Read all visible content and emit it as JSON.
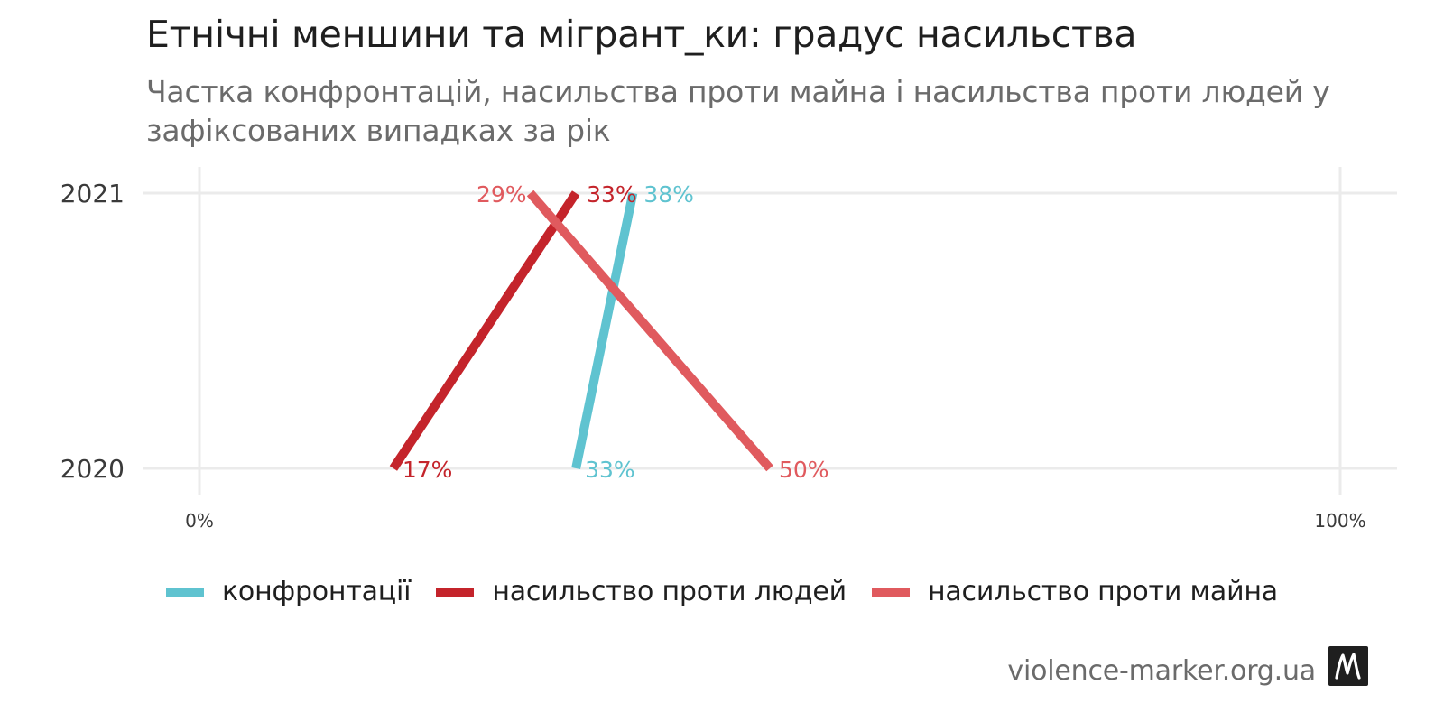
{
  "chart_data": {
    "type": "line",
    "title": "Етнічні меншини та мігрант_ки: градус насильства",
    "subtitle": "Частка конфронтацій, насильства проти майна і насильства проти людей у зафіксованих випадках за рік",
    "orientation": "horizontal",
    "categories": [
      "2020",
      "2021"
    ],
    "series": [
      {
        "name": "конфронтації",
        "color": "#5fc3d0",
        "values": [
          33,
          38
        ],
        "labels": [
          "33%",
          "38%"
        ]
      },
      {
        "name": "насильство проти людей",
        "color": "#c4242b",
        "values": [
          17,
          33
        ],
        "labels": [
          "17%",
          "33%"
        ]
      },
      {
        "name": "насильство проти майна",
        "color": "#e05a5e",
        "values": [
          50,
          29
        ],
        "labels": [
          "50%",
          "29%"
        ]
      }
    ],
    "xlim": [
      0,
      100
    ],
    "xticks": [
      "0%",
      "100%"
    ],
    "grid": true,
    "legend": "bottom"
  },
  "source": "violence-marker.org.ua",
  "logo_icon": "violence-marker-logo-icon"
}
